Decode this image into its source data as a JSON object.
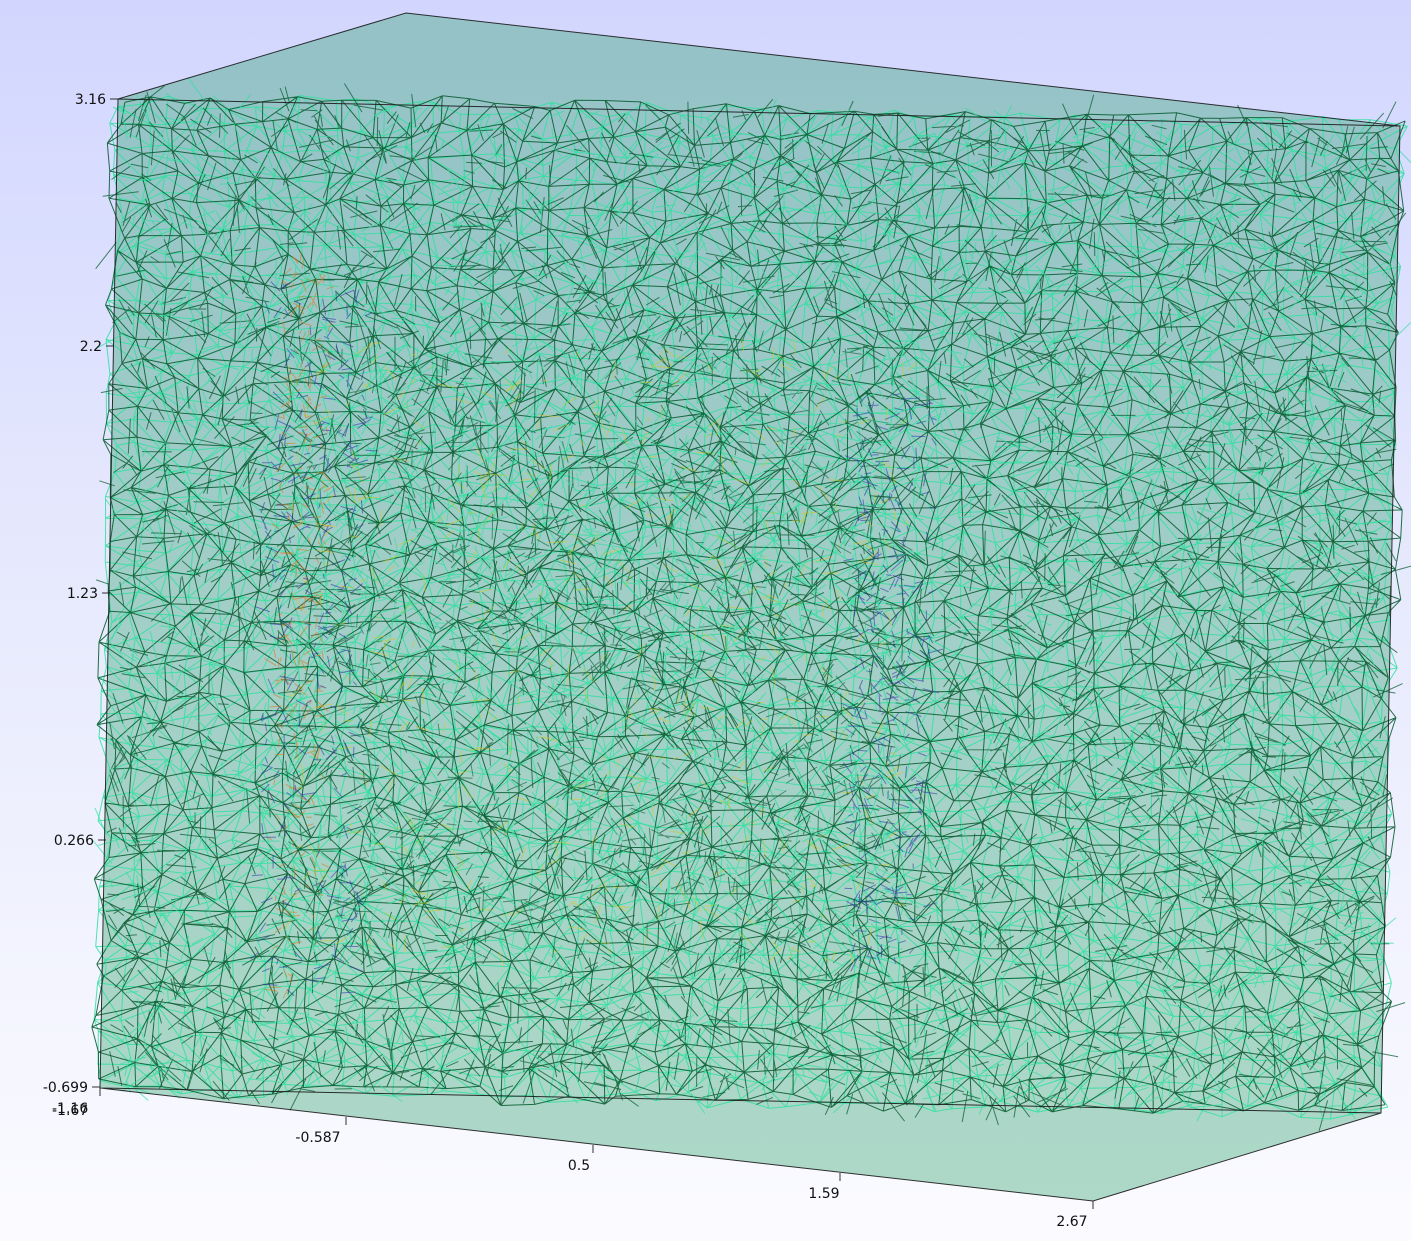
{
  "scene": {
    "title": "",
    "background_gradient": [
      "#d2d6fe",
      "#fbfbff"
    ],
    "mesh_colors": {
      "dark_edge": "#0b5e33",
      "light_edge": "#2fe0a0",
      "inner_blue": "#2a2aa8",
      "inner_yellow": "#d7c61a",
      "inner_orange": "#e07a1a",
      "box_edge": "#1a1a1a"
    }
  },
  "axes": {
    "vertical_ticks": [
      "3.16",
      "2.2",
      "1.23",
      "0.266",
      "-0.699"
    ],
    "horizontal_ticks": [
      "-1.67",
      "-0.587",
      "0.5",
      "1.59",
      "2.67"
    ],
    "depth_tick_overlap": "-1.16"
  }
}
